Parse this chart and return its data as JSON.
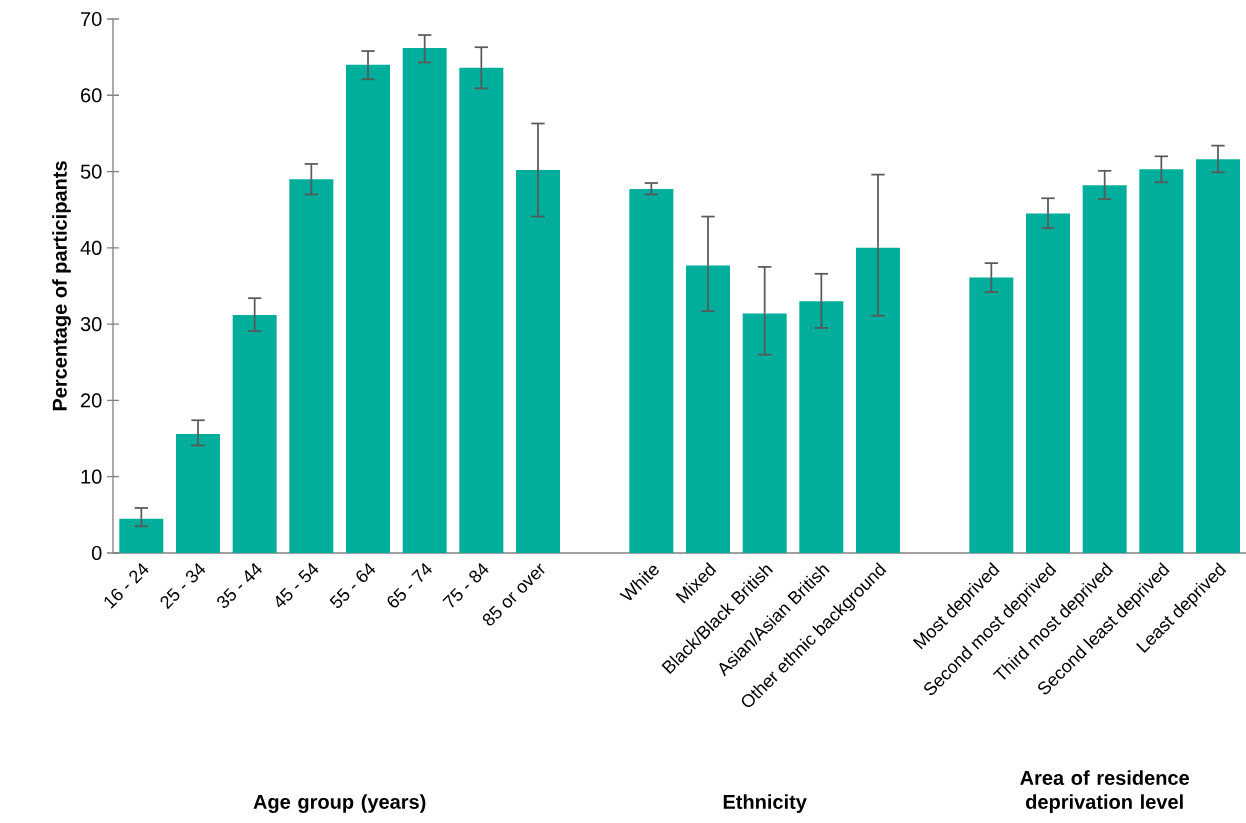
{
  "chart_data": {
    "type": "bar",
    "ylabel": "Percentage of participants",
    "categories": [
      "16 - 24",
      "25 - 34",
      "35 - 44",
      "45 - 54",
      "55 - 64",
      "65 - 74",
      "75 - 84",
      "85 or over",
      null,
      "White",
      "Mixed",
      "Black/Black British",
      "Asian/Asian British",
      "Other ethnic background",
      null,
      "Most deprived",
      "Second most deprived",
      "Third most deprived",
      "Second least deprived",
      "Least deprived"
    ],
    "values": [
      4.5,
      15.6,
      31.2,
      49,
      64,
      66.2,
      63.6,
      50.2,
      null,
      47.7,
      37.7,
      31.4,
      33,
      40,
      null,
      36.1,
      44.5,
      48.2,
      50.3,
      51.6
    ],
    "errors": [
      [
        3.5,
        5.9
      ],
      [
        14.1,
        17.4
      ],
      [
        29.1,
        33.4
      ],
      [
        47,
        51
      ],
      [
        62.1,
        65.8
      ],
      [
        64.3,
        67.9
      ],
      [
        60.9,
        66.3
      ],
      [
        44.1,
        56.3
      ],
      null,
      [
        47,
        48.5
      ],
      [
        31.7,
        44.1
      ],
      [
        26,
        37.5
      ],
      [
        29.5,
        36.6
      ],
      [
        31.1,
        49.6
      ],
      null,
      [
        34.2,
        38
      ],
      [
        42.6,
        46.5
      ],
      [
        46.4,
        50.1
      ],
      [
        48.6,
        52
      ],
      [
        49.9,
        53.4
      ]
    ],
    "color": "#00ae9b",
    "ylim": [
      0,
      70
    ],
    "yticks": [
      0,
      10,
      20,
      30,
      40,
      50,
      60,
      70
    ],
    "annotations": [
      "Age group (years)",
      "Ethnicity",
      "Area of residence deprivation level"
    ]
  }
}
